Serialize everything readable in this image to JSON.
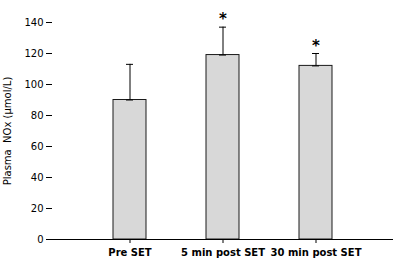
{
  "chart_data": {
    "type": "bar",
    "categories": [
      "Pre SET",
      "5 min post SET",
      "30 min post SET"
    ],
    "values": [
      90,
      119,
      112
    ],
    "error_upper": [
      23,
      18,
      8
    ],
    "error_lower": [
      0,
      0,
      0
    ],
    "color": "#d8d8d8",
    "ylabel": "Plasma  NOx (μmol/L)",
    "ylim": [
      0,
      140
    ],
    "yticks": [
      0,
      20,
      40,
      60,
      80,
      100,
      120,
      140
    ],
    "annotations": [
      {
        "category": "5 min post SET",
        "text": "*"
      },
      {
        "category": "30 min post SET",
        "text": "*"
      }
    ],
    "grid": false
  }
}
